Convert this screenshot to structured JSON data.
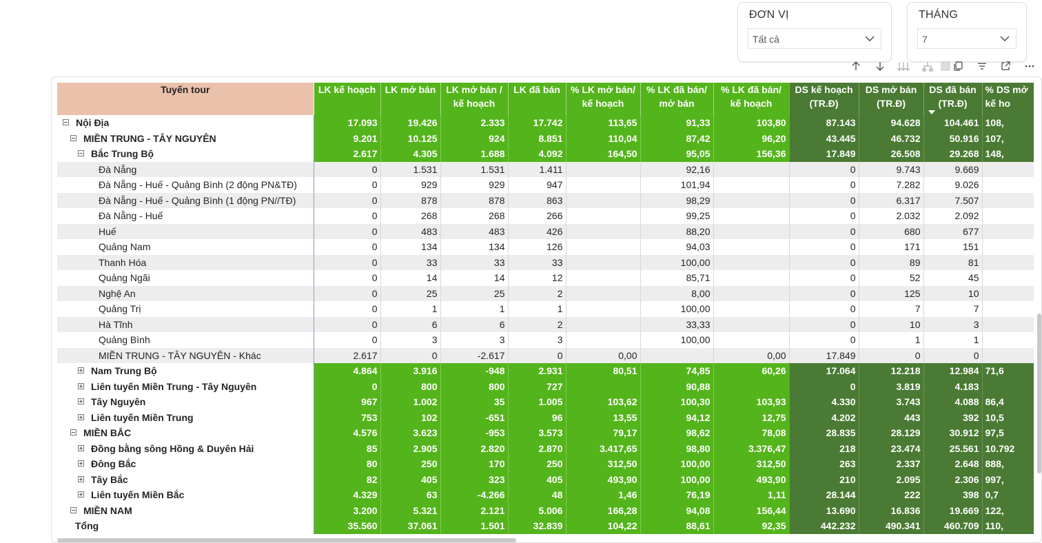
{
  "slicers": [
    {
      "title": "ĐƠN VỊ",
      "value": "Tất cả"
    },
    {
      "title": "THÁNG",
      "value": "7"
    }
  ],
  "toolbar": {
    "icons": [
      "sort-ascending-icon",
      "sort-descending-icon",
      "expand-all-down-icon",
      "hierarchy-icon",
      "copy-icon",
      "filter-icon",
      "focus-mode-icon",
      "more-options-icon"
    ]
  },
  "colors": {
    "lk_green": "#54b41b",
    "ds_green": "#4a7a33",
    "header_peach": "#eac1ab",
    "negative_red": "#e03a3a"
  },
  "matrix": {
    "row_header": "Tuyến tour",
    "columns": [
      {
        "l1": "LK kế hoạch",
        "l2": ""
      },
      {
        "l1": "LK mở bán",
        "l2": ""
      },
      {
        "l1": "LK mở bán /",
        "l2": "kế hoạch"
      },
      {
        "l1": "LK đã bán",
        "l2": ""
      },
      {
        "l1": "% LK mở bán/",
        "l2": "kế hoạch"
      },
      {
        "l1": "% LK đã bán/",
        "l2": "mở bán"
      },
      {
        "l1": "% LK đã bán/",
        "l2": "kế hoạch"
      },
      {
        "l1": "DS kế hoạch",
        "l2": "(TR.Đ)"
      },
      {
        "l1": "DS mở bán",
        "l2": "(TR.Đ)"
      },
      {
        "l1": "DS đã bán",
        "l2": "(TR.Đ)"
      },
      {
        "l1": "% DS mở",
        "l2": "kế ho"
      }
    ],
    "sort_indicator": "descending",
    "rows": [
      {
        "kind": "agg",
        "level": 0,
        "toggle": "minus",
        "label": "Nội Địa",
        "values": [
          "17.093",
          "19.426",
          "2.333",
          "17.742",
          "113,65",
          "91,33",
          "103,80",
          "87.143",
          "94.628",
          "104.461",
          "108,"
        ]
      },
      {
        "kind": "agg",
        "level": 1,
        "toggle": "minus",
        "label": "MIỀN TRUNG - TÂY NGUYÊN",
        "values": [
          "9.201",
          "10.125",
          "924",
          "8.851",
          "110,04",
          "87,42",
          "96,20",
          "43.445",
          "46.732",
          "50.916",
          "107,"
        ]
      },
      {
        "kind": "agg",
        "level": 2,
        "toggle": "minus",
        "label": "Bắc Trung Bộ",
        "values": [
          "2.617",
          "4.305",
          "1.688",
          "4.092",
          "164,50",
          "95,05",
          "156,36",
          "17.849",
          "26.508",
          "29.268",
          "148,"
        ]
      },
      {
        "kind": "leaf",
        "level": 3,
        "label": "Đà Nẵng",
        "values": [
          "0",
          "1.531",
          "1.531",
          "1.411",
          "",
          "92,16",
          "",
          "0",
          "9.743",
          "9.669",
          ""
        ]
      },
      {
        "kind": "leaf",
        "level": 3,
        "label": "Đà Nẵng - Huế - Quảng Bình (2 động PN&TĐ)",
        "values": [
          "0",
          "929",
          "929",
          "947",
          "",
          "101,94",
          "",
          "0",
          "7.282",
          "9.026",
          ""
        ]
      },
      {
        "kind": "leaf",
        "level": 3,
        "label": "Đà Nẵng - Huế - Quảng Bình (1 động PN//TĐ)",
        "values": [
          "0",
          "878",
          "878",
          "863",
          "",
          "98,29",
          "",
          "0",
          "6.317",
          "7.507",
          ""
        ]
      },
      {
        "kind": "leaf",
        "level": 3,
        "label": "Đà Nẵng - Huế",
        "values": [
          "0",
          "268",
          "268",
          "266",
          "",
          "99,25",
          "",
          "0",
          "2.032",
          "2.092",
          ""
        ]
      },
      {
        "kind": "leaf",
        "level": 3,
        "label": "Huế",
        "values": [
          "0",
          "483",
          "483",
          "426",
          "",
          "88,20",
          "",
          "0",
          "680",
          "677",
          ""
        ]
      },
      {
        "kind": "leaf",
        "level": 3,
        "label": "Quảng Nam",
        "values": [
          "0",
          "134",
          "134",
          "126",
          "",
          "94,03",
          "",
          "0",
          "171",
          "151",
          ""
        ]
      },
      {
        "kind": "leaf",
        "level": 3,
        "label": "Thanh Hóa",
        "values": [
          "0",
          "33",
          "33",
          "33",
          "",
          "100,00",
          "",
          "0",
          "89",
          "81",
          ""
        ]
      },
      {
        "kind": "leaf",
        "level": 3,
        "label": "Quảng Ngãi",
        "values": [
          "0",
          "14",
          "14",
          "12",
          "",
          "85,71",
          "",
          "0",
          "52",
          "45",
          ""
        ]
      },
      {
        "kind": "leaf",
        "level": 3,
        "label": "Nghệ An",
        "values": [
          "0",
          "25",
          "25",
          "2",
          "",
          "8,00",
          "",
          "0",
          "125",
          "10",
          ""
        ]
      },
      {
        "kind": "leaf",
        "level": 3,
        "label": "Quảng Trị",
        "values": [
          "0",
          "1",
          "1",
          "1",
          "",
          "100,00",
          "",
          "0",
          "7",
          "7",
          ""
        ]
      },
      {
        "kind": "leaf",
        "level": 3,
        "label": "Hà Tĩnh",
        "values": [
          "0",
          "6",
          "6",
          "2",
          "",
          "33,33",
          "",
          "0",
          "10",
          "3",
          ""
        ]
      },
      {
        "kind": "leaf",
        "level": 3,
        "label": "Quảng Bình",
        "values": [
          "0",
          "3",
          "3",
          "3",
          "",
          "100,00",
          "",
          "0",
          "1",
          "1",
          ""
        ]
      },
      {
        "kind": "leaf",
        "level": 3,
        "label": "MIỀN TRUNG - TÂY NGUYÊN - Khác",
        "values": [
          "2.617",
          "0",
          "-2.617",
          "0",
          "0,00",
          "",
          "0,00",
          "17.849",
          "0",
          "0",
          ""
        ]
      },
      {
        "kind": "agg",
        "level": 2,
        "toggle": "plus",
        "label": "Nam Trung Bộ",
        "values": [
          "4.864",
          "3.916",
          "-948",
          "2.931",
          "80,51",
          "74,85",
          "60,26",
          "17.064",
          "12.218",
          "12.984",
          "71,6"
        ]
      },
      {
        "kind": "agg",
        "level": 2,
        "toggle": "plus",
        "label": "Liên tuyến Miền Trung - Tây Nguyên",
        "values": [
          "0",
          "800",
          "800",
          "727",
          "",
          "90,88",
          "",
          "0",
          "3.819",
          "4.183",
          ""
        ]
      },
      {
        "kind": "agg",
        "level": 2,
        "toggle": "plus",
        "label": "Tây Nguyên",
        "values": [
          "967",
          "1.002",
          "35",
          "1.005",
          "103,62",
          "100,30",
          "103,93",
          "4.330",
          "3.743",
          "4.088",
          "86,4"
        ]
      },
      {
        "kind": "agg",
        "level": 2,
        "toggle": "plus",
        "label": "Liên tuyến Miền Trung",
        "values": [
          "753",
          "102",
          "-651",
          "96",
          "13,55",
          "94,12",
          "12,75",
          "4.202",
          "443",
          "392",
          "10,5"
        ]
      },
      {
        "kind": "agg",
        "level": 1,
        "toggle": "minus",
        "label": "MIỀN BẮC",
        "values": [
          "4.576",
          "3.623",
          "-953",
          "3.573",
          "79,17",
          "98,62",
          "78,08",
          "28.835",
          "28.129",
          "30.912",
          "97,5"
        ]
      },
      {
        "kind": "agg",
        "level": 2,
        "toggle": "plus",
        "label": "Đồng bằng sông Hồng & Duyên Hải",
        "values": [
          "85",
          "2.905",
          "2.820",
          "2.870",
          "3.417,65",
          "98,80",
          "3.376,47",
          "218",
          "23.474",
          "25.561",
          "10.792"
        ]
      },
      {
        "kind": "agg",
        "level": 2,
        "toggle": "plus",
        "label": "Đông Bắc",
        "values": [
          "80",
          "250",
          "170",
          "250",
          "312,50",
          "100,00",
          "312,50",
          "263",
          "2.337",
          "2.648",
          "888,"
        ]
      },
      {
        "kind": "agg",
        "level": 2,
        "toggle": "plus",
        "label": "Tây Bắc",
        "values": [
          "82",
          "405",
          "323",
          "405",
          "493,90",
          "100,00",
          "493,90",
          "210",
          "2.095",
          "2.306",
          "997,"
        ]
      },
      {
        "kind": "agg",
        "level": 2,
        "toggle": "plus",
        "label": "Liên tuyến Miền Bắc",
        "values": [
          "4.329",
          "63",
          "-4.266",
          "48",
          "1,46",
          "76,19",
          "1,11",
          "28.144",
          "222",
          "398",
          "0,7"
        ]
      },
      {
        "kind": "agg",
        "level": 1,
        "toggle": "minus",
        "label": "MIỀN NAM",
        "values": [
          "3.200",
          "5.321",
          "2.121",
          "5.006",
          "166,28",
          "94,08",
          "156,44",
          "13.690",
          "16.836",
          "19.669",
          "122,"
        ]
      },
      {
        "kind": "total",
        "level": 0,
        "label": "Tổng",
        "values": [
          "35.560",
          "37.061",
          "1.501",
          "32.839",
          "104,22",
          "88,61",
          "92,35",
          "442.232",
          "490.341",
          "460.709",
          "110,"
        ]
      }
    ]
  }
}
